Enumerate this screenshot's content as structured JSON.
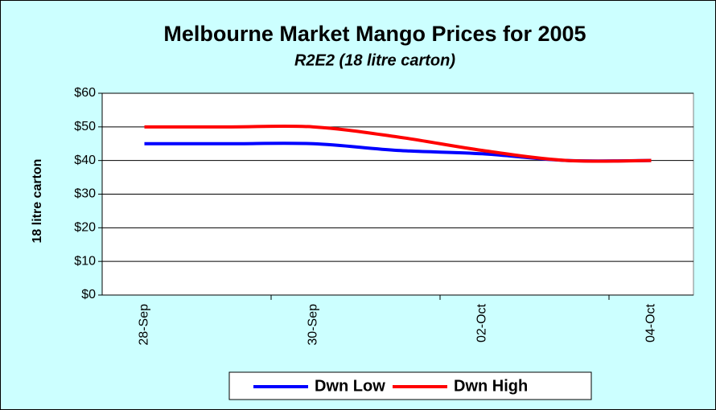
{
  "chart_data": {
    "type": "line",
    "title": "Melbourne Market Mango Prices for 2005",
    "subtitle": "R2E2 (18 litre carton)",
    "y_label": "18 litre carton",
    "categories": [
      "28-Sep",
      null,
      "30-Sep",
      null,
      "02-Oct",
      null,
      "04-Oct"
    ],
    "series": [
      {
        "name": "Dwn Low",
        "color": "#0000ff",
        "values": [
          45,
          45,
          45,
          43,
          42,
          40,
          40
        ]
      },
      {
        "name": "Dwn High",
        "color": "#ff0000",
        "values": [
          50,
          50,
          50,
          47,
          43,
          40,
          40
        ]
      }
    ],
    "ylim": [
      0,
      60
    ],
    "yticks": [
      {
        "value": 0,
        "label": "$0"
      },
      {
        "value": 10,
        "label": "$10"
      },
      {
        "value": 20,
        "label": "$20"
      },
      {
        "value": 30,
        "label": "$30"
      },
      {
        "value": 40,
        "label": "$40"
      },
      {
        "value": 50,
        "label": "$50"
      },
      {
        "value": 60,
        "label": "$60"
      }
    ],
    "grid": true,
    "legend": "bottom"
  }
}
